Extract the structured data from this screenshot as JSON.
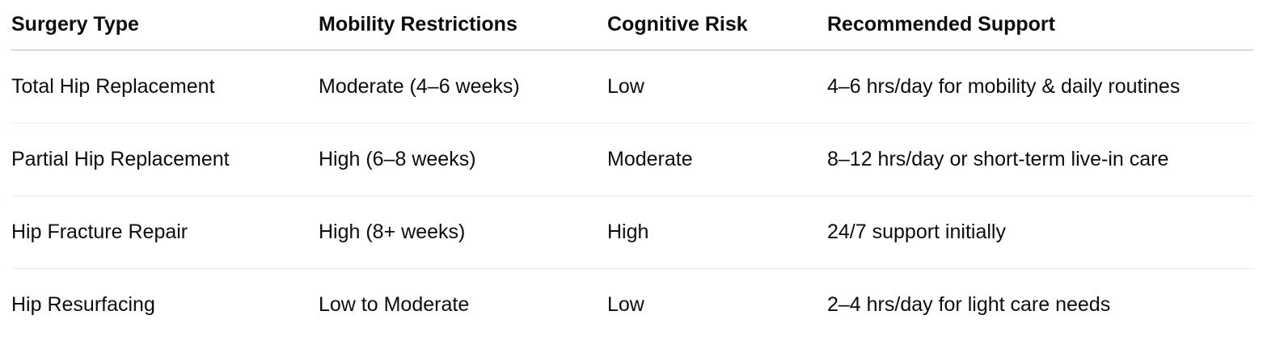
{
  "table": {
    "headers": [
      "Surgery Type",
      "Mobility Restrictions",
      "Cognitive Risk",
      "Recommended Support"
    ],
    "rows": [
      [
        "Total Hip Replacement",
        "Moderate (4–6 weeks)",
        "Low",
        "4–6 hrs/day for mobility & daily routines"
      ],
      [
        "Partial Hip Replacement",
        "High (6–8 weeks)",
        "Moderate",
        "8–12 hrs/day or short-term live-in care"
      ],
      [
        "Hip Fracture Repair",
        "High (8+ weeks)",
        "High",
        "24/7 support initially"
      ],
      [
        "Hip Resurfacing",
        "Low to Moderate",
        "Low",
        "2–4 hrs/day for light care needs"
      ]
    ]
  }
}
